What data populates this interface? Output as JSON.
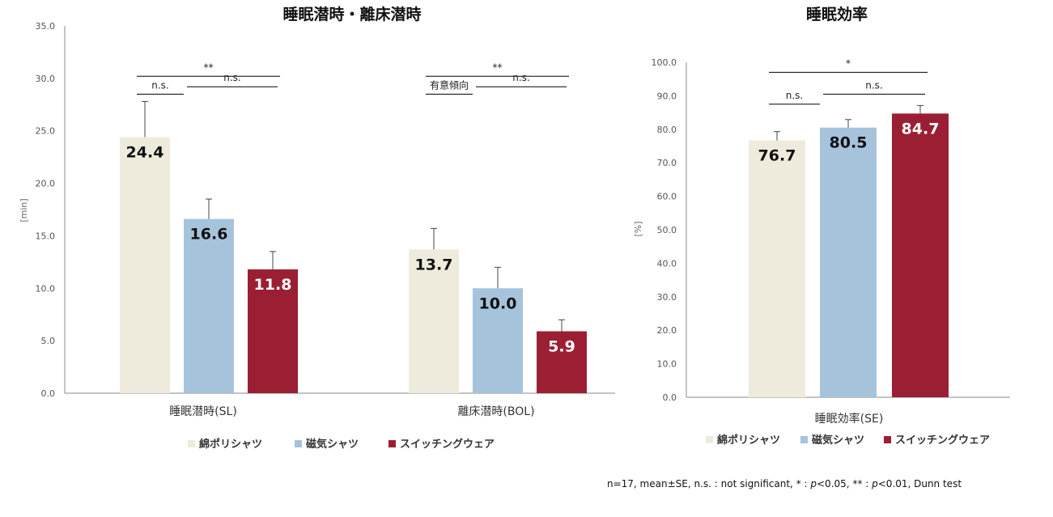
{
  "colors": {
    "cotton_poly": "#EEEBDD",
    "magnetic": "#A6C3DC",
    "switching": "#9B1F33",
    "axis": "#888888",
    "sig_line": "#000000"
  },
  "legend": [
    {
      "label": "綿ポリシャツ",
      "color_key": "cotton_poly"
    },
    {
      "label": "磁気シャツ",
      "color_key": "magnetic"
    },
    {
      "label": "スイッチングウェア",
      "color_key": "switching"
    }
  ],
  "footnote": {
    "part1": "n=17, mean±SE, n.s. : not significant, * : ",
    "p1": "p",
    "part2": "<0.05, ** : ",
    "p2": "p",
    "part3": "<0.01, Dunn test"
  },
  "chart_data": [
    {
      "type": "bar",
      "title": "睡眠潜時・離床潜時",
      "ylabel": "[min]",
      "ylim": [
        0,
        35
      ],
      "yticks": [
        "0.0",
        "5.0",
        "10.0",
        "15.0",
        "20.0",
        "25.0",
        "30.0",
        "35.0"
      ],
      "categories": [
        "睡眠潜時(SL)",
        "離床潜時(BOL)"
      ],
      "series": [
        {
          "name": "綿ポリシャツ",
          "values": [
            24.4,
            13.7
          ],
          "errors": [
            3.4,
            2.0
          ],
          "labels": [
            "24.4",
            "13.7"
          ]
        },
        {
          "name": "磁気シャツ",
          "values": [
            16.6,
            10.0
          ],
          "errors": [
            1.9,
            2.0
          ],
          "labels": [
            "16.6",
            "10.0"
          ]
        },
        {
          "name": "スイッチングウェア",
          "values": [
            11.8,
            5.9
          ],
          "errors": [
            1.7,
            1.1
          ],
          "labels": [
            "11.8",
            "5.9"
          ]
        }
      ],
      "significance": [
        {
          "group": 0,
          "label": "**",
          "from": 0,
          "to": 2,
          "level": 30.2
        },
        {
          "group": 0,
          "label": "n.s.",
          "from": 0,
          "to": 1,
          "level": 28.5
        },
        {
          "group": 0,
          "label": "n.s.",
          "from": 1,
          "to": 2,
          "level": 29.2
        },
        {
          "group": 1,
          "label": "**",
          "from": 0,
          "to": 2,
          "level": 30.2
        },
        {
          "group": 1,
          "label": "有意傾向",
          "from": 0,
          "to": 1,
          "level": 28.5
        },
        {
          "group": 1,
          "label": "n.s.",
          "from": 1,
          "to": 2,
          "level": 29.2
        }
      ]
    },
    {
      "type": "bar",
      "title": "睡眠効率",
      "ylabel": "[%]",
      "ylim": [
        0,
        100
      ],
      "yticks": [
        "0.0",
        "10.0",
        "20.0",
        "30.0",
        "40.0",
        "50.0",
        "60.0",
        "70.0",
        "80.0",
        "90.0",
        "100.0"
      ],
      "categories": [
        "睡眠効率(SE)"
      ],
      "series": [
        {
          "name": "綿ポリシャツ",
          "values": [
            76.7
          ],
          "errors": [
            2.6
          ],
          "labels": [
            "76.7"
          ]
        },
        {
          "name": "磁気シャツ",
          "values": [
            80.5
          ],
          "errors": [
            2.4
          ],
          "labels": [
            "80.5"
          ]
        },
        {
          "name": "スイッチングウェア",
          "values": [
            84.7
          ],
          "errors": [
            2.4
          ],
          "labels": [
            "84.7"
          ]
        }
      ],
      "significance": [
        {
          "group": 0,
          "label": "*",
          "from": 0,
          "to": 2,
          "level": 97.0
        },
        {
          "group": 0,
          "label": "n.s.",
          "from": 0,
          "to": 1,
          "level": 87.5
        },
        {
          "group": 0,
          "label": "n.s.",
          "from": 1,
          "to": 2,
          "level": 90.5
        }
      ]
    }
  ]
}
